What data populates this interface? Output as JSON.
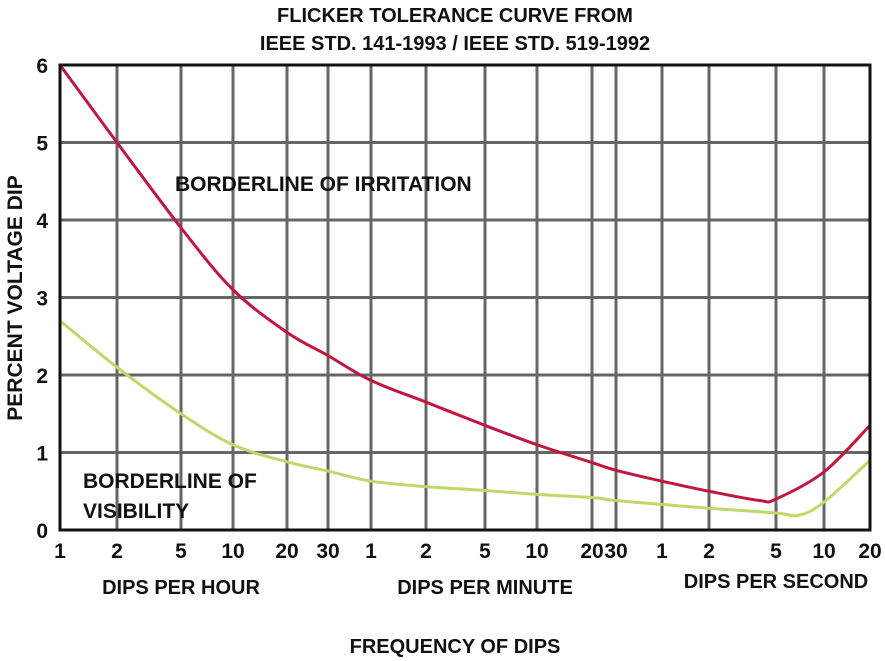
{
  "chart_data": {
    "type": "line",
    "title": [
      "FLICKER TOLERANCE CURVE FROM",
      "IEEE STD. 141-1993 / IEEE STD. 519-1992"
    ],
    "ylabel": "PERCENT VOLTAGE DIP",
    "xlabel": "FREQUENCY OF DIPS",
    "ylim": [
      0,
      6
    ],
    "yticks": [
      0,
      1,
      2,
      3,
      4,
      5,
      6
    ],
    "x_unit_note": "x values in dips per hour",
    "xticks_per_hour": [
      1,
      2,
      5,
      10,
      20,
      30,
      60,
      120,
      300,
      600,
      1200,
      1800,
      3600,
      7200,
      18000,
      36000,
      72000
    ],
    "xtick_labels": [
      "1",
      "2",
      "5",
      "10",
      "20",
      "30",
      "1",
      "2",
      "5",
      "10",
      "20",
      "30",
      "1",
      "2",
      "5",
      "10",
      "20"
    ],
    "x_groups": [
      "DIPS PER HOUR",
      "DIPS PER MINUTE",
      "DIPS PER SECOND"
    ],
    "grid": true,
    "series": [
      {
        "name": "BORDERLINE OF IRRITATION",
        "color": "#c0173f",
        "x": [
          1,
          2,
          5,
          10,
          20,
          30,
          60,
          120,
          300,
          600,
          1200,
          1800,
          3600,
          7200,
          14400,
          18000,
          36000,
          72000
        ],
        "y": [
          6.0,
          5.0,
          3.9,
          3.1,
          2.55,
          2.25,
          1.93,
          1.65,
          1.35,
          1.1,
          0.87,
          0.77,
          0.63,
          0.5,
          0.38,
          0.4,
          0.75,
          1.35
        ]
      },
      {
        "name": "BORDERLINE OF VISIBILITY",
        "color": "#bcd96a",
        "x": [
          1,
          2,
          5,
          10,
          20,
          30,
          60,
          120,
          300,
          600,
          1200,
          1800,
          3600,
          7200,
          18000,
          25000,
          36000,
          72000
        ],
        "y": [
          2.7,
          2.1,
          1.5,
          1.1,
          0.88,
          0.76,
          0.63,
          0.56,
          0.51,
          0.46,
          0.42,
          0.38,
          0.33,
          0.28,
          0.22,
          0.19,
          0.36,
          0.9
        ]
      }
    ],
    "annotations": {
      "irritation": "BORDERLINE OF IRRITATION",
      "visibility_line1": "BORDERLINE OF",
      "visibility_line2": "VISIBILITY"
    }
  }
}
